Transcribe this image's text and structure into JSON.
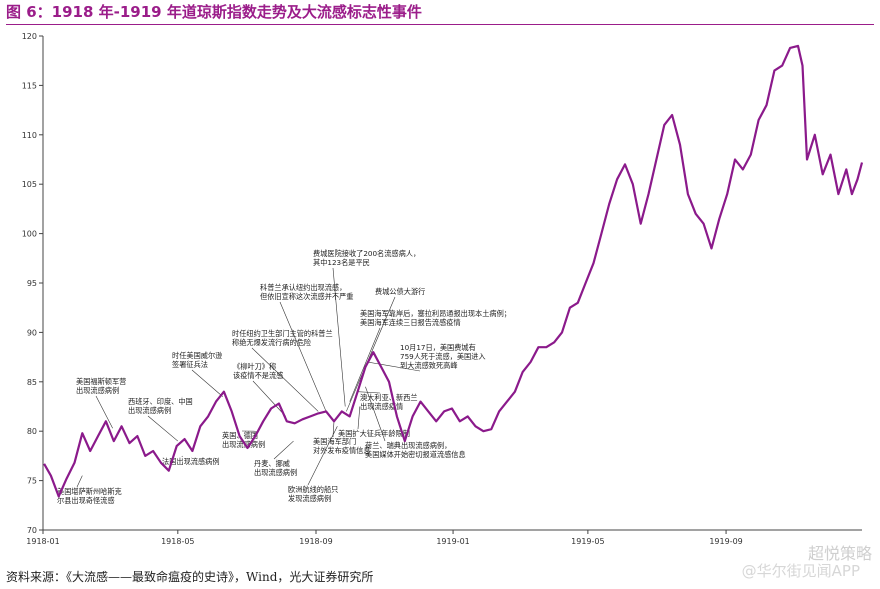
{
  "figure": {
    "title": "图 6：1918 年-1919 年道琼斯指数走势及大流感标志性事件",
    "source": "资料来源：《大流感——最致命瘟疫的史诗》，Wind，光大证券研究所",
    "watermark": "超悦策略",
    "watermark2": "@华尔街见闻APP"
  },
  "colors": {
    "line": "#8b1a8b",
    "title": "#9b1d8a"
  },
  "chart_data": {
    "type": "line",
    "title": "",
    "xlabel": "",
    "ylabel": "",
    "ylim": [
      70,
      120
    ],
    "yticks": [
      70,
      75,
      80,
      85,
      90,
      95,
      100,
      105,
      110,
      115,
      120
    ],
    "xlim": [
      "1918-01-01",
      "1919-12-31"
    ],
    "xticks": [
      "1918-01",
      "1918-05",
      "1918-09",
      "1919-01",
      "1919-05",
      "1919-09"
    ],
    "grid": false,
    "series": [
      {
        "values": [
          [
            "1918-01-02",
            76.7
          ],
          [
            "1918-01-08",
            75.5
          ],
          [
            "1918-01-15",
            73.4
          ],
          [
            "1918-01-22",
            75.2
          ],
          [
            "1918-01-29",
            76.8
          ],
          [
            "1918-02-05",
            79.8
          ],
          [
            "1918-02-12",
            78.0
          ],
          [
            "1918-02-19",
            79.5
          ],
          [
            "1918-02-26",
            81.0
          ],
          [
            "1918-03-05",
            79.0
          ],
          [
            "1918-03-12",
            80.5
          ],
          [
            "1918-03-19",
            78.8
          ],
          [
            "1918-03-26",
            79.5
          ],
          [
            "1918-04-02",
            77.5
          ],
          [
            "1918-04-09",
            78.0
          ],
          [
            "1918-04-16",
            76.8
          ],
          [
            "1918-04-23",
            76.0
          ],
          [
            "1918-04-30",
            78.5
          ],
          [
            "1918-05-07",
            79.2
          ],
          [
            "1918-05-14",
            78.0
          ],
          [
            "1918-05-21",
            80.5
          ],
          [
            "1918-05-28",
            81.5
          ],
          [
            "1918-06-04",
            83.0
          ],
          [
            "1918-06-11",
            84.0
          ],
          [
            "1918-06-18",
            82.0
          ],
          [
            "1918-06-25",
            79.5
          ],
          [
            "1918-07-02",
            78.3
          ],
          [
            "1918-07-09",
            79.5
          ],
          [
            "1918-07-16",
            81.0
          ],
          [
            "1918-07-23",
            82.3
          ],
          [
            "1918-07-30",
            82.8
          ],
          [
            "1918-08-06",
            81.0
          ],
          [
            "1918-08-13",
            80.8
          ],
          [
            "1918-08-20",
            81.2
          ],
          [
            "1918-08-27",
            81.5
          ],
          [
            "1918-09-03",
            81.8
          ],
          [
            "1918-09-10",
            82.0
          ],
          [
            "1918-09-17",
            81.0
          ],
          [
            "1918-09-24",
            82.0
          ],
          [
            "1918-10-01",
            81.5
          ],
          [
            "1918-10-08",
            84.0
          ],
          [
            "1918-10-15",
            86.5
          ],
          [
            "1918-10-22",
            88.0
          ],
          [
            "1918-10-29",
            86.5
          ],
          [
            "1918-11-05",
            85.0
          ],
          [
            "1918-11-12",
            81.5
          ],
          [
            "1918-11-19",
            79.0
          ],
          [
            "1918-11-26",
            81.5
          ],
          [
            "1918-12-03",
            83.0
          ],
          [
            "1918-12-10",
            82.0
          ],
          [
            "1918-12-17",
            81.0
          ],
          [
            "1918-12-24",
            82.0
          ],
          [
            "1918-12-31",
            82.3
          ],
          [
            "1919-01-07",
            81.0
          ],
          [
            "1919-01-14",
            81.5
          ],
          [
            "1919-01-21",
            80.5
          ],
          [
            "1919-01-28",
            80.0
          ],
          [
            "1919-02-04",
            80.2
          ],
          [
            "1919-02-11",
            82.0
          ],
          [
            "1919-02-18",
            83.0
          ],
          [
            "1919-02-25",
            84.0
          ],
          [
            "1919-03-04",
            86.0
          ],
          [
            "1919-03-11",
            87.0
          ],
          [
            "1919-03-18",
            88.5
          ],
          [
            "1919-03-25",
            88.5
          ],
          [
            "1919-04-01",
            89.0
          ],
          [
            "1919-04-08",
            90.0
          ],
          [
            "1919-04-15",
            92.5
          ],
          [
            "1919-04-22",
            93.0
          ],
          [
            "1919-04-29",
            95.0
          ],
          [
            "1919-05-06",
            97.0
          ],
          [
            "1919-05-13",
            100.0
          ],
          [
            "1919-05-20",
            103.0
          ],
          [
            "1919-05-27",
            105.5
          ],
          [
            "1919-06-03",
            107.0
          ],
          [
            "1919-06-10",
            105.0
          ],
          [
            "1919-06-17",
            101.0
          ],
          [
            "1919-06-24",
            104.0
          ],
          [
            "1919-07-01",
            107.5
          ],
          [
            "1919-07-08",
            111.0
          ],
          [
            "1919-07-15",
            112.0
          ],
          [
            "1919-07-22",
            109.0
          ],
          [
            "1919-07-29",
            104.0
          ],
          [
            "1919-08-05",
            102.0
          ],
          [
            "1919-08-12",
            101.0
          ],
          [
            "1919-08-19",
            98.5
          ],
          [
            "1919-08-26",
            101.5
          ],
          [
            "1919-09-02",
            104.0
          ],
          [
            "1919-09-09",
            107.5
          ],
          [
            "1919-09-16",
            106.5
          ],
          [
            "1919-09-23",
            108.0
          ],
          [
            "1919-09-30",
            111.5
          ],
          [
            "1919-10-07",
            113.0
          ],
          [
            "1919-10-14",
            116.5
          ],
          [
            "1919-10-21",
            117.0
          ],
          [
            "1919-10-28",
            118.8
          ],
          [
            "1919-11-04",
            119.0
          ],
          [
            "1919-11-08",
            117.0
          ],
          [
            "1919-11-12",
            107.5
          ],
          [
            "1919-11-19",
            110.0
          ],
          [
            "1919-11-26",
            106.0
          ],
          [
            "1919-12-03",
            108.0
          ],
          [
            "1919-12-10",
            104.0
          ],
          [
            "1919-12-17",
            106.5
          ],
          [
            "1919-12-22",
            104.0
          ],
          [
            "1919-12-27",
            105.5
          ],
          [
            "1919-12-31",
            107.2
          ]
        ]
      }
    ],
    "annotations": [
      {
        "text": "美国堪萨斯州哈斯克",
        "text2": "尔县出现奇怪流感",
        "date": "1918-02-05",
        "value": 75.5
      },
      {
        "text": "美国福斯顿军营",
        "text2": "出现流感病例",
        "date": "1918-03-04",
        "value": 80.3
      },
      {
        "text": "西班牙、印度、中国",
        "text2": "出现流感病例",
        "date": "1918-05-01",
        "value": 79.0
      },
      {
        "text": "法国出现流感病例",
        "date": "1918-05-05",
        "value": 77.5
      },
      {
        "text": "时任美国威尔逊",
        "text2": "签署征兵法",
        "date": "1918-06-10",
        "value": 83.5
      },
      {
        "text": "英国、德国",
        "text2": "出现流感病例",
        "date": "1918-07-10",
        "value": 80.0
      },
      {
        "text": "《柳叶刀》称",
        "text2": "该疫情不是流感",
        "date": "1918-08-05",
        "value": 81.5
      },
      {
        "text": "丹麦、挪威",
        "text2": "出现流感病例",
        "date": "1918-08-12",
        "value": 79.0
      },
      {
        "text": "时任纽约卫生部门主管的科普兰",
        "text2": "称绝无爆发流行病的危险",
        "date": "1918-09-03",
        "value": 82.0
      },
      {
        "text": "科普兰承认纽约出现流感，",
        "text2": "但依旧宣称这次流感并不严重",
        "date": "1918-09-10",
        "value": 82.0
      },
      {
        "text": "美国海军部门",
        "text2": "对外发布疫情信息",
        "date": "1918-09-17",
        "value": 81.0
      },
      {
        "text": "欧洲航线的船只",
        "text2": "发现流感病例",
        "date": "1918-09-20",
        "value": 80.5
      },
      {
        "text": "费城医院接收了200名流感病人，",
        "text2": "其中123名是平民",
        "date": "1918-09-27",
        "value": 82.5
      },
      {
        "text": "费城公债大游行",
        "date": "1918-09-28",
        "value": 82.0
      },
      {
        "text": "美国海军靠岸后，塞拉利昂通报出现本土病例；",
        "text2": "美国海军连续三日报告流感疫情",
        "date": "1918-10-01",
        "value": 83.0
      },
      {
        "text": "澳大利亚、新西兰",
        "text2": "出现流感疫情",
        "date": "1918-10-08",
        "value": 84.0
      },
      {
        "text": "美国扩大征兵年龄限制",
        "date": "1918-10-10",
        "value": 82.5
      },
      {
        "text": "荷兰、瑞典出现流感病例，",
        "text2": "美国媒体开始密切报道流感信息",
        "date": "1918-10-15",
        "value": 84.5
      },
      {
        "text": "10月17日，美国费城有",
        "text2": "759人死于流感，美国进入",
        "text3": "到大流感致死高峰",
        "date": "1918-10-17",
        "value": 87.0
      }
    ]
  }
}
